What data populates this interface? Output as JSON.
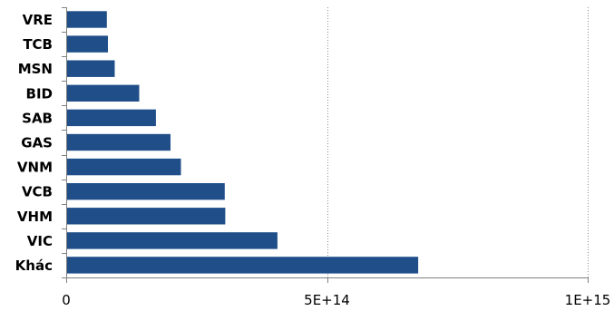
{
  "chart_data": {
    "type": "bar",
    "orientation": "horizontal",
    "title": "",
    "xlabel": "",
    "ylabel": "",
    "categories": [
      "VRE",
      "TCB",
      "MSN",
      "BID",
      "SAB",
      "GAS",
      "VNM",
      "VCB",
      "VHM",
      "VIC",
      "Khác"
    ],
    "values": [
      78000000000000.0,
      80000000000000.0,
      93000000000000.0,
      140000000000000.0,
      172000000000000.0,
      200000000000000.0,
      220000000000000.0,
      304000000000000.0,
      305000000000000.0,
      405000000000000.0,
      675000000000000.0
    ],
    "xlim": [
      0,
      1000000000000000.0
    ],
    "x_ticks": [
      0,
      500000000000000.0,
      1000000000000000.0
    ],
    "x_tick_labels": [
      "0",
      "5E+14",
      "1E+15"
    ],
    "grid": "vertical dotted",
    "legend": "none",
    "bar_color": "#1f4e89"
  }
}
